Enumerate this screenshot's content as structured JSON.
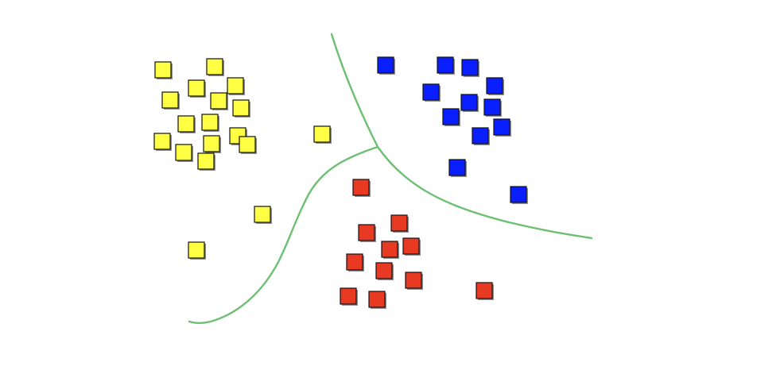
{
  "colors": {
    "background": "#ffffff",
    "boundary": "#6dbf73",
    "yellow": "#ffff44",
    "blue": "#0a1fff",
    "red": "#e83a22",
    "marker_stroke": "#111111"
  },
  "clusters": [
    {
      "name": "yellow-cluster",
      "color_key": "yellow",
      "count": 19
    },
    {
      "name": "blue-cluster",
      "color_key": "blue",
      "count": 13
    },
    {
      "name": "red-cluster",
      "color_key": "red",
      "count": 12
    }
  ],
  "boundaries": [
    {
      "name": "boundary-blue-upper"
    },
    {
      "name": "boundary-red-yellow"
    }
  ]
}
